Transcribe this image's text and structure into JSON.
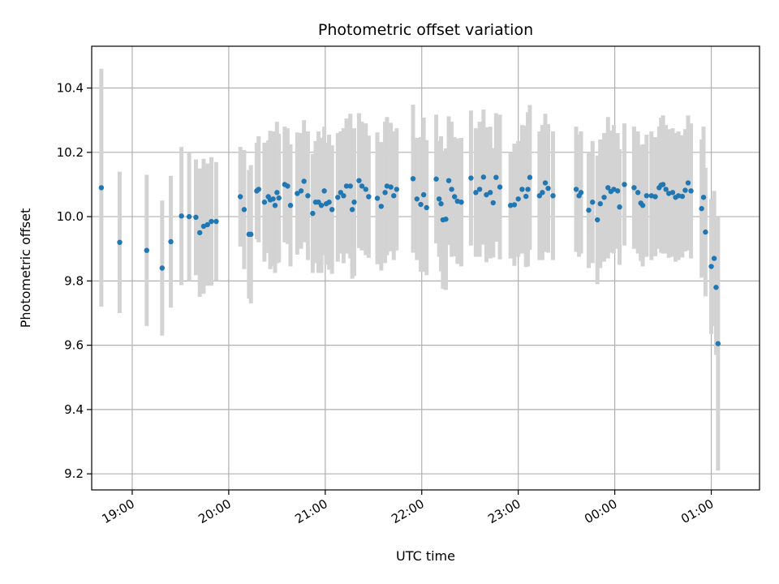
{
  "chart_data": {
    "type": "scatter",
    "title": "Photometric offset variation",
    "xlabel": "UTC time",
    "ylabel": "Photometric offset",
    "x_unit": "hours UTC (values past 24 fall after midnight)",
    "xlim": [
      18.58,
      25.5
    ],
    "ylim": [
      9.15,
      10.53
    ],
    "x_ticks": [
      {
        "value": 19,
        "label": "19:00"
      },
      {
        "value": 20,
        "label": "20:00"
      },
      {
        "value": 21,
        "label": "21:00"
      },
      {
        "value": 22,
        "label": "22:00"
      },
      {
        "value": 23,
        "label": "23:00"
      },
      {
        "value": 24,
        "label": "00:00"
      },
      {
        "value": 25,
        "label": "01:00"
      }
    ],
    "y_ticks": [
      {
        "value": 9.2,
        "label": "9.2"
      },
      {
        "value": 9.4,
        "label": "9.4"
      },
      {
        "value": 9.6,
        "label": "9.6"
      },
      {
        "value": 9.8,
        "label": "9.8"
      },
      {
        "value": 10.0,
        "label": "10.0"
      },
      {
        "value": 10.2,
        "label": "10.2"
      },
      {
        "value": 10.4,
        "label": "10.4"
      }
    ],
    "grid": true,
    "marker_color": "#1f77b4",
    "errorbar_color": "#d3d3d3",
    "points": [
      [
        18.68,
        10.09,
        0.37
      ],
      [
        18.87,
        9.92,
        0.22
      ],
      [
        19.15,
        9.895,
        0.235
      ],
      [
        19.31,
        9.84,
        0.21
      ],
      [
        19.4,
        9.922,
        0.205
      ],
      [
        19.51,
        10.002,
        0.215
      ],
      [
        19.59,
        10.0,
        0.2
      ],
      [
        19.66,
        9.998,
        0.18
      ],
      [
        19.7,
        9.95,
        0.2
      ],
      [
        19.74,
        9.97,
        0.21
      ],
      [
        19.78,
        9.975,
        0.19
      ],
      [
        19.82,
        9.985,
        0.2
      ],
      [
        19.87,
        9.985,
        0.185
      ],
      [
        20.12,
        10.062,
        0.155
      ],
      [
        20.16,
        10.022,
        0.185
      ],
      [
        20.21,
        9.945,
        0.2
      ],
      [
        20.23,
        9.945,
        0.215
      ],
      [
        20.29,
        10.08,
        0.15
      ],
      [
        20.31,
        10.085,
        0.165
      ],
      [
        20.37,
        10.045,
        0.185
      ],
      [
        20.41,
        10.062,
        0.175
      ],
      [
        20.43,
        10.052,
        0.215
      ],
      [
        20.46,
        10.055,
        0.21
      ],
      [
        20.48,
        10.035,
        0.21
      ],
      [
        20.5,
        10.075,
        0.22
      ],
      [
        20.52,
        10.058,
        0.2
      ],
      [
        20.58,
        10.1,
        0.18
      ],
      [
        20.61,
        10.095,
        0.18
      ],
      [
        20.64,
        10.035,
        0.19
      ],
      [
        20.71,
        10.072,
        0.19
      ],
      [
        20.75,
        10.08,
        0.18
      ],
      [
        20.78,
        10.11,
        0.19
      ],
      [
        20.82,
        10.065,
        0.2
      ],
      [
        20.87,
        10.01,
        0.185
      ],
      [
        20.9,
        10.045,
        0.19
      ],
      [
        20.93,
        10.045,
        0.22
      ],
      [
        20.96,
        10.035,
        0.21
      ],
      [
        20.99,
        10.08,
        0.2
      ],
      [
        21.01,
        10.04,
        0.19
      ],
      [
        21.04,
        10.045,
        0.21
      ],
      [
        21.07,
        10.022,
        0.2
      ],
      [
        21.13,
        10.06,
        0.2
      ],
      [
        21.16,
        10.075,
        0.19
      ],
      [
        21.19,
        10.065,
        0.21
      ],
      [
        21.22,
        10.095,
        0.21
      ],
      [
        21.26,
        10.095,
        0.225
      ],
      [
        21.28,
        10.022,
        0.215
      ],
      [
        21.3,
        10.045,
        0.23
      ],
      [
        21.35,
        10.112,
        0.21
      ],
      [
        21.38,
        10.095,
        0.2
      ],
      [
        21.42,
        10.085,
        0.205
      ],
      [
        21.45,
        10.062,
        0.19
      ],
      [
        21.54,
        10.057,
        0.205
      ],
      [
        21.58,
        10.032,
        0.2
      ],
      [
        21.62,
        10.075,
        0.22
      ],
      [
        21.64,
        10.095,
        0.215
      ],
      [
        21.68,
        10.092,
        0.2
      ],
      [
        21.71,
        10.065,
        0.2
      ],
      [
        21.74,
        10.085,
        0.19
      ],
      [
        21.91,
        10.118,
        0.23
      ],
      [
        21.95,
        10.055,
        0.19
      ],
      [
        21.99,
        10.038,
        0.21
      ],
      [
        22.02,
        10.068,
        0.24
      ],
      [
        22.05,
        10.028,
        0.21
      ],
      [
        22.15,
        10.117,
        0.2
      ],
      [
        22.18,
        10.055,
        0.18
      ],
      [
        22.2,
        10.04,
        0.21
      ],
      [
        22.22,
        9.99,
        0.215
      ],
      [
        22.25,
        9.992,
        0.22
      ],
      [
        22.28,
        10.112,
        0.2
      ],
      [
        22.31,
        10.085,
        0.21
      ],
      [
        22.34,
        10.062,
        0.185
      ],
      [
        22.37,
        10.048,
        0.195
      ],
      [
        22.41,
        10.045,
        0.2
      ],
      [
        22.51,
        10.12,
        0.21
      ],
      [
        22.56,
        10.075,
        0.2
      ],
      [
        22.6,
        10.085,
        0.21
      ],
      [
        22.64,
        10.123,
        0.21
      ],
      [
        22.67,
        10.068,
        0.21
      ],
      [
        22.71,
        10.075,
        0.205
      ],
      [
        22.74,
        10.043,
        0.17
      ],
      [
        22.77,
        10.122,
        0.2
      ],
      [
        22.81,
        10.092,
        0.225
      ],
      [
        22.92,
        10.035,
        0.165
      ],
      [
        22.96,
        10.037,
        0.19
      ],
      [
        23.0,
        10.055,
        0.18
      ],
      [
        23.04,
        10.085,
        0.2
      ],
      [
        23.08,
        10.063,
        0.22
      ],
      [
        23.1,
        10.085,
        0.24
      ],
      [
        23.12,
        10.122,
        0.225
      ],
      [
        23.22,
        10.065,
        0.2
      ],
      [
        23.25,
        10.075,
        0.21
      ],
      [
        23.28,
        10.105,
        0.215
      ],
      [
        23.31,
        10.088,
        0.2
      ],
      [
        23.36,
        10.065,
        0.2
      ],
      [
        23.6,
        10.085,
        0.195
      ],
      [
        23.63,
        10.065,
        0.19
      ],
      [
        23.65,
        10.075,
        0.19
      ],
      [
        23.73,
        10.02,
        0.18
      ],
      [
        23.77,
        10.045,
        0.19
      ],
      [
        23.82,
        9.99,
        0.2
      ],
      [
        23.85,
        10.04,
        0.2
      ],
      [
        23.89,
        10.06,
        0.2
      ],
      [
        23.93,
        10.09,
        0.22
      ],
      [
        23.96,
        10.078,
        0.19
      ],
      [
        23.99,
        10.085,
        0.2
      ],
      [
        24.03,
        10.08,
        0.18
      ],
      [
        24.05,
        10.03,
        0.18
      ],
      [
        24.1,
        10.1,
        0.19
      ],
      [
        24.2,
        10.09,
        0.19
      ],
      [
        24.24,
        10.075,
        0.19
      ],
      [
        24.27,
        10.042,
        0.18
      ],
      [
        24.29,
        10.035,
        0.19
      ],
      [
        24.33,
        10.065,
        0.19
      ],
      [
        24.38,
        10.065,
        0.2
      ],
      [
        24.42,
        10.062,
        0.185
      ],
      [
        24.46,
        10.09,
        0.19
      ],
      [
        24.48,
        10.098,
        0.21
      ],
      [
        24.5,
        10.1,
        0.215
      ],
      [
        24.53,
        10.085,
        0.2
      ],
      [
        24.56,
        10.072,
        0.2
      ],
      [
        24.6,
        10.075,
        0.2
      ],
      [
        24.63,
        10.06,
        0.2
      ],
      [
        24.66,
        10.065,
        0.2
      ],
      [
        24.7,
        10.063,
        0.19
      ],
      [
        24.73,
        10.082,
        0.19
      ],
      [
        24.76,
        10.105,
        0.21
      ],
      [
        24.79,
        10.08,
        0.21
      ],
      [
        24.9,
        10.025,
        0.215
      ],
      [
        24.92,
        10.06,
        0.22
      ],
      [
        24.94,
        9.952,
        0.2
      ],
      [
        25.0,
        9.845,
        0.21
      ],
      [
        25.03,
        9.87,
        0.21
      ],
      [
        25.05,
        9.78,
        0.21
      ],
      [
        25.07,
        9.605,
        0.395
      ]
    ]
  }
}
